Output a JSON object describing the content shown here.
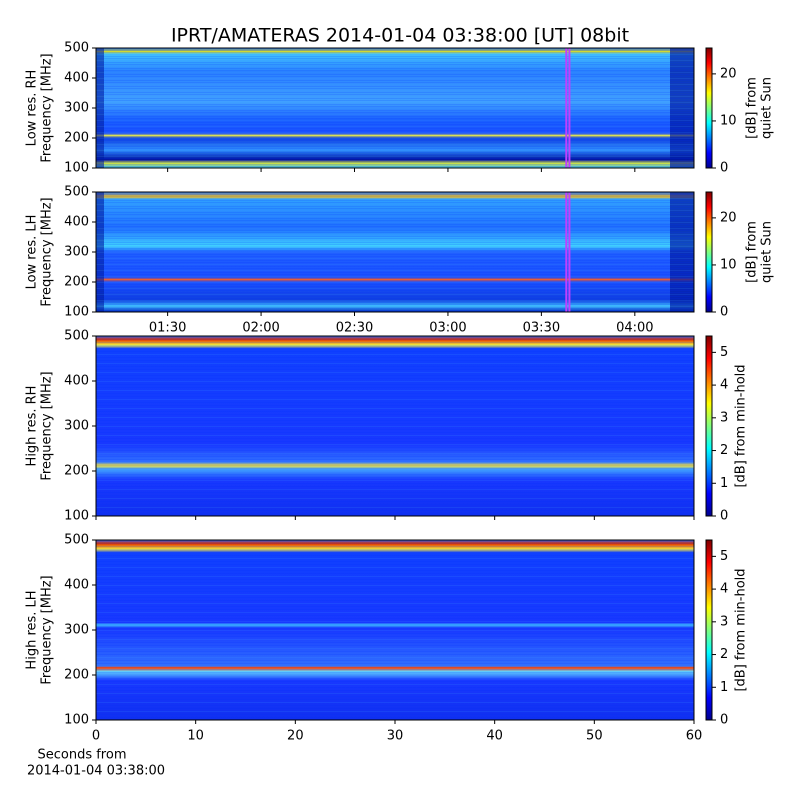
{
  "title": "IPRT/AMATERAS 2014-01-04 03:38:00 [UT]   08bit",
  "chart_data": [
    {
      "type": "heatmap",
      "ylabel": [
        "Low res. RH",
        "Frequency [MHz]"
      ],
      "ylim": [
        100,
        500
      ],
      "yticks": [
        100,
        200,
        300,
        400,
        500
      ],
      "xlim": [
        67,
        259
      ],
      "highlight": [
        218,
        219
      ],
      "highlight_color": "#c040ff",
      "colorbar": {
        "label": [
          "[dB] from",
          "quiet Sun"
        ],
        "lim": [
          0,
          25.5
        ],
        "ticks": [
          0,
          10,
          20
        ]
      }
    },
    {
      "type": "heatmap",
      "ylabel": [
        "Low res. LH",
        "Frequency [MHz]"
      ],
      "ylim": [
        100,
        500
      ],
      "yticks": [
        100,
        200,
        300,
        400,
        500
      ],
      "xlim": [
        67,
        259
      ],
      "highlight": [
        218,
        219
      ],
      "highlight_color": "#c040ff",
      "xticks": [
        {
          "value": 90,
          "label": "01:30"
        },
        {
          "value": 120,
          "label": "02:00"
        },
        {
          "value": 150,
          "label": "02:30"
        },
        {
          "value": 180,
          "label": "03:00"
        },
        {
          "value": 210,
          "label": "03:30"
        },
        {
          "value": 240,
          "label": "04:00"
        }
      ],
      "colorbar": {
        "label": [
          "[dB] from",
          "quiet Sun"
        ],
        "lim": [
          0,
          25.5
        ],
        "ticks": [
          0,
          10,
          20
        ]
      }
    },
    {
      "type": "heatmap",
      "ylabel": [
        "High res. RH",
        "Frequency [MHz]"
      ],
      "ylim": [
        100,
        500
      ],
      "yticks": [
        100,
        200,
        300,
        400,
        500
      ],
      "xlim": [
        0,
        60
      ],
      "colorbar": {
        "label": [
          "[dB] from min-hold"
        ],
        "lim": [
          0,
          5.5
        ],
        "ticks": [
          0,
          1,
          2,
          3,
          4,
          5
        ]
      }
    },
    {
      "type": "heatmap",
      "ylabel": [
        "High res. LH",
        "Frequency [MHz]"
      ],
      "ylim": [
        100,
        500
      ],
      "yticks": [
        100,
        200,
        300,
        400,
        500
      ],
      "xlim": [
        0,
        60
      ],
      "xticks": [
        0,
        10,
        20,
        30,
        40,
        50,
        60
      ],
      "xlabel": [
        "Seconds from",
        "2014-01-04 03:38:00"
      ],
      "colorbar": {
        "label": [
          "[dB] from min-hold"
        ],
        "lim": [
          0,
          5.5
        ],
        "ticks": [
          0,
          1,
          2,
          3,
          4,
          5
        ]
      }
    }
  ]
}
